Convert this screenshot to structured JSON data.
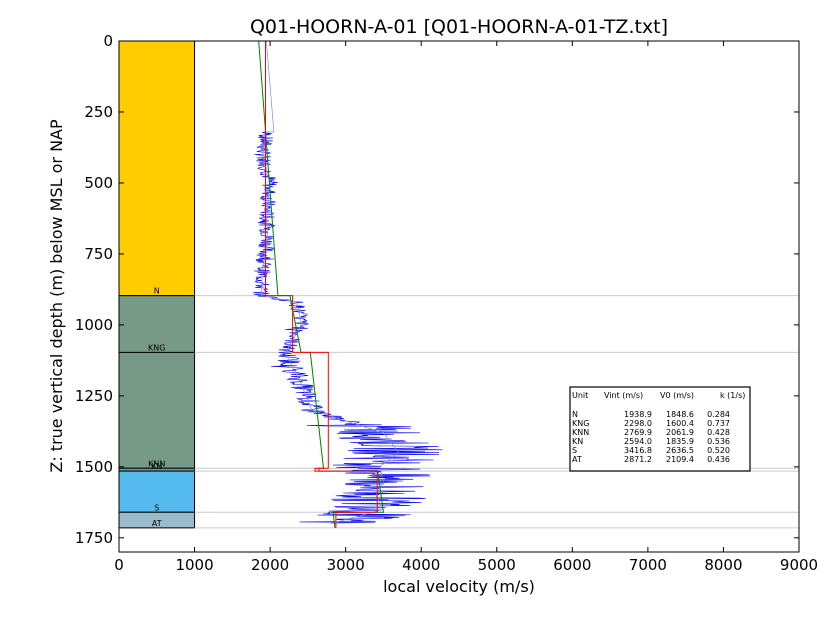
{
  "chart_data": {
    "type": "line",
    "title": "Q01-HOORN-A-01 [Q01-HOORN-A-01-TZ.txt]",
    "xlabel": "local velocity (m/s)",
    "ylabel": "Z: true vertical depth (m) below MSL or NAP",
    "xlim": [
      0,
      9000
    ],
    "ylim": [
      1800,
      0
    ],
    "xticks": [
      "0",
      "1000",
      "2000",
      "3000",
      "4000",
      "5000",
      "6000",
      "7000",
      "8000",
      "9000"
    ],
    "yticks": [
      "0",
      "250",
      "500",
      "750",
      "1000",
      "1250",
      "1500",
      "1750"
    ],
    "units": [
      {
        "name": "N",
        "top": 0,
        "base": 897,
        "color": "#FFCC00"
      },
      {
        "name": "KNG",
        "top": 897,
        "base": 1097,
        "color": "#779988"
      },
      {
        "name": "KNN",
        "top": 1097,
        "base": 1505,
        "color": "#779988"
      },
      {
        "name": "KN",
        "top": 1505,
        "base": 1515,
        "color": "#779988"
      },
      {
        "name": "S",
        "top": 1515,
        "base": 1660,
        "color": "#55BBEE"
      },
      {
        "name": "AT",
        "top": 1660,
        "base": 1715,
        "color": "#99BBCC"
      }
    ],
    "table": {
      "header": {
        "unit": "Unit",
        "vint": "Vint (m/s)",
        "v0": "V0 (m/s)",
        "k": "k (1/s)"
      },
      "rows": [
        {
          "unit": "N",
          "vint": "1938.9",
          "v0": "1848.6",
          "k": "0.284"
        },
        {
          "unit": "KNG",
          "vint": "2298.0",
          "v0": "1600.4",
          "k": "0.737"
        },
        {
          "unit": "KNN",
          "vint": "2769.9",
          "v0": "2061.9",
          "k": "0.428"
        },
        {
          "unit": "KN",
          "vint": "2594.0",
          "v0": "1835.9",
          "k": "0.536"
        },
        {
          "unit": "S",
          "vint": "3416.8",
          "v0": "2636.5",
          "k": "0.520"
        },
        {
          "unit": "AT",
          "vint": "2871.2",
          "v0": "2109.4",
          "k": "0.436"
        }
      ]
    },
    "interval_velocity": [
      {
        "top": 0,
        "base": 897,
        "v": 1938.9
      },
      {
        "top": 897,
        "base": 1097,
        "v": 2298.0
      },
      {
        "top": 1097,
        "base": 1505,
        "v": 2769.9
      },
      {
        "top": 1505,
        "base": 1515,
        "v": 2594.0
      },
      {
        "top": 1515,
        "base": 1660,
        "v": 3416.8
      },
      {
        "top": 1660,
        "base": 1715,
        "v": 2871.2
      }
    ],
    "v0k_model": [
      {
        "top": 0,
        "base": 897,
        "v0": 1848.6,
        "k": 0.284
      },
      {
        "top": 897,
        "base": 1097,
        "v0": 1600.4,
        "k": 0.737
      },
      {
        "top": 1097,
        "base": 1505,
        "v0": 2061.9,
        "k": 0.428
      },
      {
        "top": 1505,
        "base": 1515,
        "v0": 1835.9,
        "k": 0.536
      },
      {
        "top": 1515,
        "base": 1660,
        "v0": 2636.5,
        "k": 0.52
      },
      {
        "top": 1660,
        "base": 1715,
        "v0": 2109.4,
        "k": 0.436
      }
    ],
    "log_velocity_trend": [
      {
        "z": 320,
        "v": 1950
      },
      {
        "z": 400,
        "v": 1900
      },
      {
        "z": 500,
        "v": 2000
      },
      {
        "z": 600,
        "v": 1950
      },
      {
        "z": 700,
        "v": 1970
      },
      {
        "z": 800,
        "v": 1900
      },
      {
        "z": 897,
        "v": 1880
      },
      {
        "z": 920,
        "v": 2350
      },
      {
        "z": 1000,
        "v": 2420
      },
      {
        "z": 1097,
        "v": 2200
      },
      {
        "z": 1200,
        "v": 2400
      },
      {
        "z": 1300,
        "v": 2550
      },
      {
        "z": 1380,
        "v": 3500
      },
      {
        "z": 1450,
        "v": 3700
      },
      {
        "z": 1500,
        "v": 3450
      },
      {
        "z": 1550,
        "v": 3500
      },
      {
        "z": 1600,
        "v": 3400
      },
      {
        "z": 1650,
        "v": 3500
      },
      {
        "z": 1700,
        "v": 2800
      }
    ],
    "series_colors": {
      "log": "#0000EE",
      "interval": "#FF0000",
      "v0k": "#008000",
      "smooth": "#8888EE"
    },
    "grid": false
  }
}
